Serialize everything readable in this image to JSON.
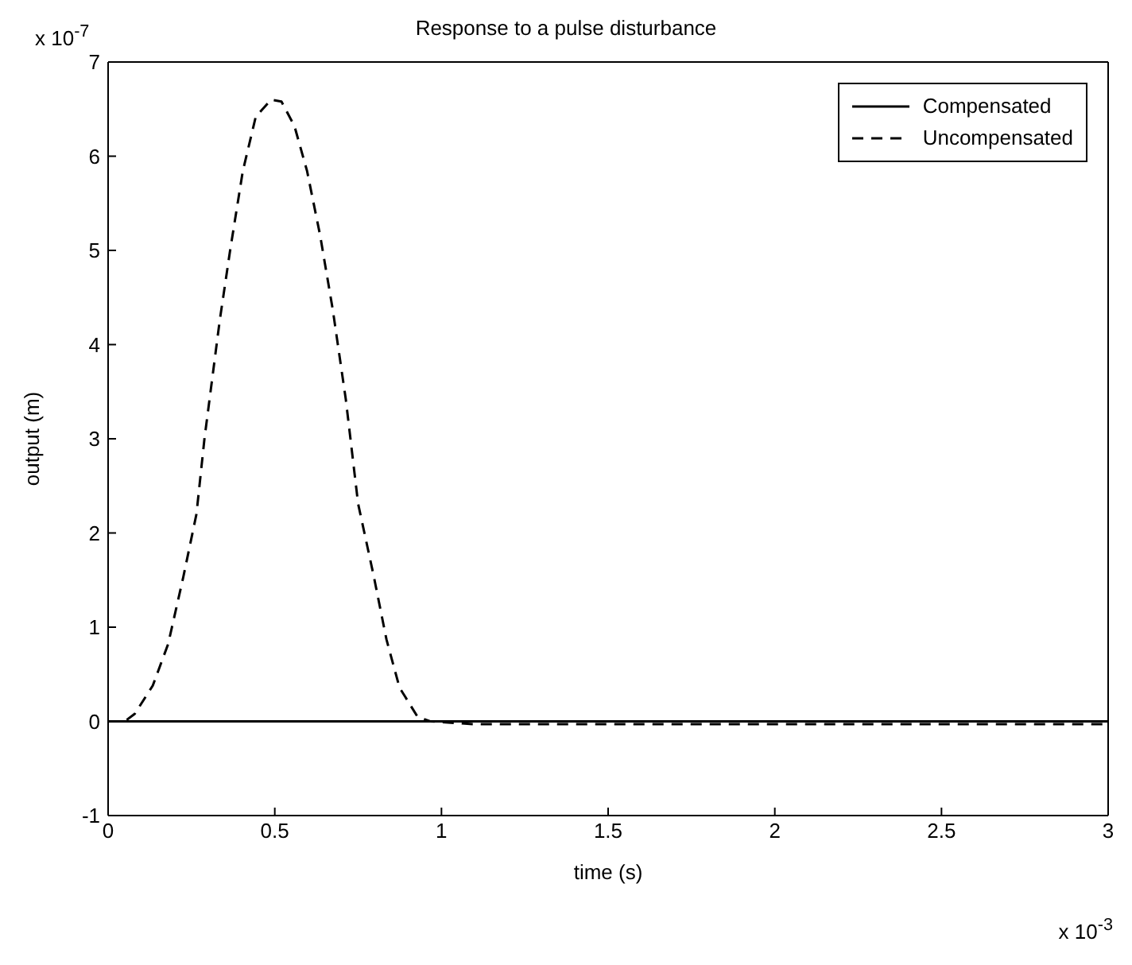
{
  "chart_data": {
    "type": "line",
    "title": "Response to a pulse disturbance",
    "xlabel": "time (s)",
    "ylabel": "output (m)",
    "annotations": [
      "x 10$^{-7}$",
      "x 10$^{-3}$"
    ],
    "xlim": [
      0,
      3
    ],
    "xticks": [
      0,
      {
        "value": 0.5,
        "label": "0.5"
      },
      1,
      {
        "value": 1.5,
        "label": "1.5"
      },
      2,
      {
        "value": 2.5,
        "label": "2.5"
      },
      3
    ],
    "ylim": [
      -1,
      7
    ],
    "yticks": [
      -1,
      0,
      1,
      2,
      3,
      4,
      5,
      6,
      7
    ],
    "grid": false,
    "legend": "top right",
    "marker": "none",
    "series": [
      {
        "name": "Compensated",
        "color": "#000000",
        "line_style": "solid",
        "x": [
          0,
          3
        ],
        "values": [
          0,
          0
        ]
      },
      {
        "name": "Uncompensated",
        "color": "#000000",
        "line_style": "dashed",
        "x": [
          0,
          0.05,
          0.08,
          0.134,
          0.18,
          0.226,
          0.265,
          0.289,
          0.335,
          0.366,
          0.404,
          0.443,
          0.489,
          0.52,
          0.559,
          0.597,
          0.636,
          0.674,
          0.713,
          0.75,
          0.797,
          0.835,
          0.874,
          0.928,
          0.966,
          1.1,
          3
        ],
        "values": [
          0,
          0,
          0.08,
          0.38,
          0.82,
          1.54,
          2.2,
          3.0,
          4.26,
          5.0,
          5.84,
          6.42,
          6.6,
          6.58,
          6.32,
          5.84,
          5.16,
          4.37,
          3.42,
          2.31,
          1.54,
          0.87,
          0.36,
          0.05,
          0,
          -0.03,
          -0.03
        ]
      }
    ]
  }
}
